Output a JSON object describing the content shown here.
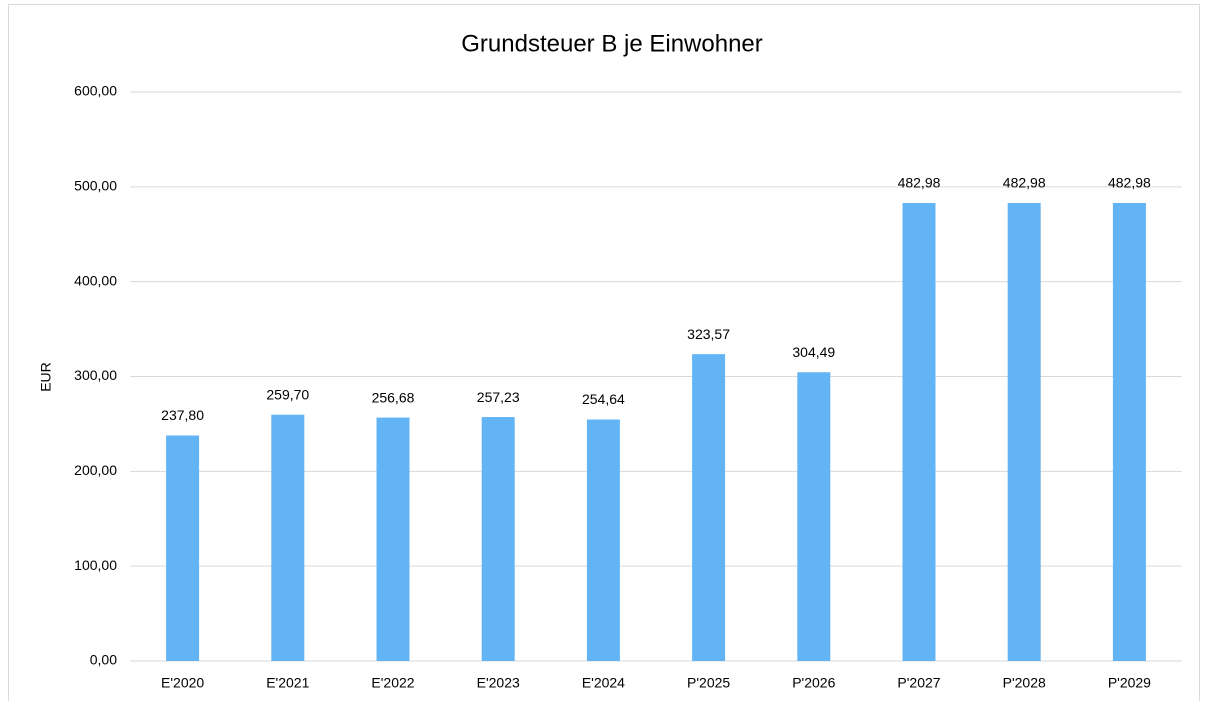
{
  "chart_data": {
    "type": "bar",
    "title": "Grundsteuer B je Einwohner",
    "y_label": "EUR",
    "categories": [
      "E'2020",
      "E'2021",
      "E'2022",
      "E'2023",
      "E'2024",
      "P'2025",
      "P'2026",
      "P'2027",
      "P'2028",
      "P'2029"
    ],
    "values": [
      237.8,
      259.7,
      256.68,
      257.23,
      254.64,
      323.57,
      304.49,
      482.98,
      482.98,
      482.98
    ],
    "value_labels": [
      "237,80",
      "259,70",
      "256,68",
      "257,23",
      "254,64",
      "323,57",
      "304,49",
      "482,98",
      "482,98",
      "482,98"
    ],
    "color": "#63b4f5",
    "ylim": [
      0,
      600
    ],
    "yticks": [
      {
        "value": 0,
        "label": "0,00"
      },
      {
        "value": 100,
        "label": "100,00"
      },
      {
        "value": 200,
        "label": "200,00"
      },
      {
        "value": 300,
        "label": "300,00"
      },
      {
        "value": 400,
        "label": "400,00"
      },
      {
        "value": 500,
        "label": "500,00"
      },
      {
        "value": 600,
        "label": "600,00"
      }
    ],
    "grid": true
  }
}
